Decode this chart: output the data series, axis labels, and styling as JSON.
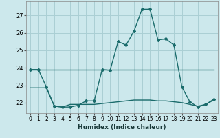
{
  "xlabel": "Humidex (Indice chaleur)",
  "background_color": "#cce8ec",
  "grid_color": "#aacfd4",
  "line_color": "#1a6b6b",
  "xlim": [
    -0.5,
    23.5
  ],
  "ylim": [
    21.4,
    27.8
  ],
  "yticks": [
    22,
    23,
    24,
    25,
    26,
    27
  ],
  "xticks": [
    0,
    1,
    2,
    3,
    4,
    5,
    6,
    7,
    8,
    9,
    10,
    11,
    12,
    13,
    14,
    15,
    16,
    17,
    18,
    19,
    20,
    21,
    22,
    23
  ],
  "line1_x": [
    0,
    1,
    2,
    3,
    4,
    5,
    6,
    7,
    8,
    9,
    10,
    11,
    12,
    13,
    14,
    15,
    16,
    17,
    18,
    19,
    20,
    21,
    22,
    23
  ],
  "line1_y": [
    23.9,
    23.9,
    23.9,
    23.9,
    23.9,
    23.9,
    23.9,
    23.9,
    23.9,
    23.9,
    23.9,
    23.9,
    23.9,
    23.9,
    23.9,
    23.9,
    23.9,
    23.9,
    23.9,
    23.9,
    23.9,
    23.9,
    23.9,
    23.9
  ],
  "line2_x": [
    0,
    1,
    2,
    3,
    4,
    5,
    6,
    7,
    8,
    9,
    10,
    11,
    12,
    13,
    14,
    15,
    16,
    17,
    18,
    19,
    20,
    21,
    22,
    23
  ],
  "line2_y": [
    23.9,
    23.9,
    22.9,
    21.8,
    21.75,
    21.75,
    21.85,
    22.1,
    22.1,
    23.9,
    23.85,
    25.5,
    25.3,
    26.1,
    27.35,
    27.35,
    25.6,
    25.65,
    25.3,
    22.9,
    22.05,
    21.75,
    21.9,
    22.2
  ],
  "line3_x": [
    0,
    1,
    2,
    3,
    4,
    5,
    6,
    7,
    8,
    9,
    10,
    11,
    12,
    13,
    14,
    15,
    16,
    17,
    18,
    19,
    20,
    21,
    22,
    23
  ],
  "line3_y": [
    22.85,
    22.85,
    22.85,
    21.8,
    21.75,
    21.9,
    21.9,
    21.9,
    21.9,
    21.95,
    22.0,
    22.05,
    22.1,
    22.15,
    22.15,
    22.15,
    22.1,
    22.1,
    22.05,
    22.0,
    21.9,
    21.8,
    21.9,
    22.15
  ]
}
